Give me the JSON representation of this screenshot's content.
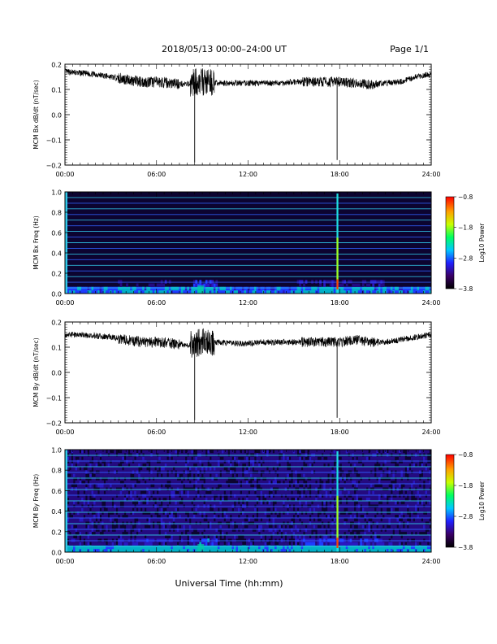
{
  "header": {
    "title": "2018/05/13  00:00–24:00 UT",
    "page": "Page 1/1"
  },
  "chart_data": [
    {
      "type": "line",
      "ylabel": "MCM Bx dB/dt (nT/sec)",
      "ylim": [
        -0.2,
        0.2
      ],
      "yticks": [
        "0.2",
        "0.1",
        "0.0",
        "−0.1",
        "−0.2"
      ],
      "xlim": [
        "00:00",
        "24:00"
      ],
      "xticks": [
        "00:00",
        "06:00",
        "12:00",
        "18:00",
        "24:00"
      ],
      "series": [
        {
          "x": [
            "00:00",
            "01:00",
            "02:00",
            "03:00",
            "04:00",
            "05:00",
            "06:00",
            "07:00",
            "08:00",
            "08:30",
            "09:00",
            "10:00",
            "11:00",
            "12:00",
            "13:00",
            "14:00",
            "15:00",
            "16:00",
            "17:00",
            "18:00",
            "19:00",
            "20:00",
            "21:00",
            "22:00",
            "23:00",
            "24:00"
          ],
          "values": [
            0.17,
            0.165,
            0.16,
            0.15,
            0.14,
            0.13,
            0.13,
            0.125,
            0.12,
            0.13,
            0.13,
            0.125,
            0.125,
            0.125,
            0.125,
            0.125,
            0.13,
            0.13,
            0.13,
            0.13,
            0.125,
            0.12,
            0.125,
            0.13,
            0.15,
            0.16
          ]
        }
      ],
      "spikes": [
        {
          "x": "08:30",
          "min": -0.19
        },
        {
          "x": "17:50",
          "min": -0.18
        }
      ]
    },
    {
      "type": "heatmap",
      "ylabel": "MCM Bx Freq (Hz)",
      "ylim": [
        0.0,
        1.0
      ],
      "yticks": [
        "1.0",
        "0.8",
        "0.6",
        "0.4",
        "0.2",
        "0.0"
      ],
      "xlim": [
        "00:00",
        "24:00"
      ],
      "xticks": [
        "00:00",
        "06:00",
        "12:00",
        "18:00",
        "24:00"
      ],
      "colorbar": {
        "label": "Log10 Power",
        "ticks": [
          "−0.8",
          "−1.8",
          "−2.8",
          "−3.8"
        ],
        "range": [
          -3.8,
          -0.8
        ]
      }
    },
    {
      "type": "line",
      "ylabel": "MCM By dB/dt (nT/sec)",
      "ylim": [
        -0.2,
        0.2
      ],
      "yticks": [
        "0.2",
        "0.1",
        "0.0",
        "−0.1",
        "−0.2"
      ],
      "xlim": [
        "00:00",
        "24:00"
      ],
      "xticks": [
        "00:00",
        "06:00",
        "12:00",
        "18:00",
        "24:00"
      ],
      "series": [
        {
          "x": [
            "00:00",
            "01:00",
            "02:00",
            "03:00",
            "04:00",
            "05:00",
            "06:00",
            "07:00",
            "08:00",
            "08:30",
            "09:00",
            "10:00",
            "11:00",
            "12:00",
            "13:00",
            "14:00",
            "15:00",
            "16:00",
            "17:00",
            "18:00",
            "19:00",
            "20:00",
            "21:00",
            "22:00",
            "23:00",
            "24:00"
          ],
          "values": [
            0.15,
            0.15,
            0.145,
            0.14,
            0.13,
            0.12,
            0.12,
            0.115,
            0.11,
            0.115,
            0.12,
            0.12,
            0.115,
            0.115,
            0.12,
            0.12,
            0.12,
            0.12,
            0.12,
            0.12,
            0.13,
            0.12,
            0.12,
            0.13,
            0.14,
            0.15
          ]
        }
      ],
      "spikes": [
        {
          "x": "08:30",
          "min": -0.19
        },
        {
          "x": "17:50",
          "min": -0.18
        }
      ]
    },
    {
      "type": "heatmap",
      "ylabel": "MCM By Freq (Hz)",
      "ylim": [
        0.0,
        1.0
      ],
      "yticks": [
        "1.0",
        "0.8",
        "0.6",
        "0.4",
        "0.2",
        "0.0"
      ],
      "xlim": [
        "00:00",
        "24:00"
      ],
      "xticks": [
        "00:00",
        "06:00",
        "12:00",
        "18:00",
        "24:00"
      ],
      "colorbar": {
        "label": "Log10 Power",
        "ticks": [
          "−0.8",
          "−1.8",
          "−2.8",
          "−3.8"
        ],
        "range": [
          -3.8,
          -0.8
        ]
      }
    }
  ],
  "xaxis": {
    "label": "Universal Time (hh:mm)"
  },
  "colors": {
    "line": "#000000",
    "background": "#ffffff"
  }
}
